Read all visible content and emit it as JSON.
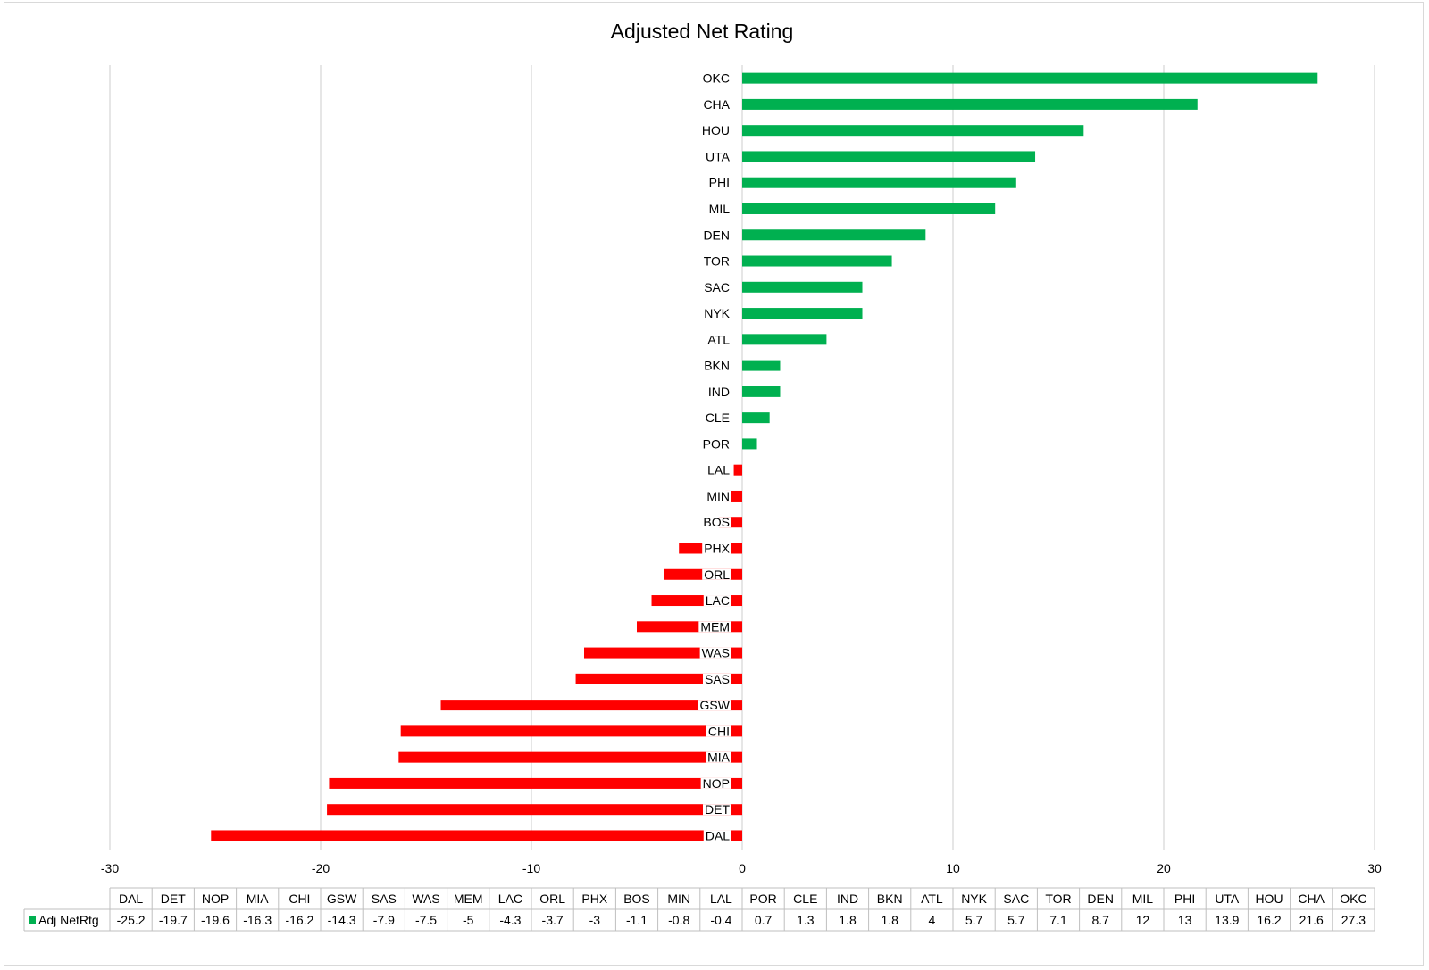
{
  "chart_data": {
    "type": "bar",
    "orientation": "horizontal",
    "title": "Adjusted Net Rating",
    "categories": [
      "DAL",
      "DET",
      "NOP",
      "MIA",
      "CHI",
      "GSW",
      "SAS",
      "WAS",
      "MEM",
      "LAC",
      "ORL",
      "PHX",
      "BOS",
      "MIN",
      "LAL",
      "POR",
      "CLE",
      "IND",
      "BKN",
      "ATL",
      "NYK",
      "SAC",
      "TOR",
      "DEN",
      "MIL",
      "PHI",
      "UTA",
      "HOU",
      "CHA",
      "OKC"
    ],
    "series": [
      {
        "name": "Adj NetRtg",
        "values": [
          -25.2,
          -19.7,
          -19.6,
          -16.3,
          -16.2,
          -14.3,
          -7.9,
          -7.5,
          -5,
          -4.3,
          -3.7,
          -3,
          -1.1,
          -0.8,
          -0.4,
          0.7,
          1.3,
          1.8,
          1.8,
          4,
          5.7,
          5.7,
          7.1,
          8.7,
          12,
          13,
          13.9,
          16.2,
          21.6,
          27.3
        ]
      }
    ],
    "xlim": [
      -30,
      30
    ],
    "xticks": [
      -30,
      -20,
      -10,
      0,
      10,
      20,
      30
    ],
    "grid": "vertical",
    "data_table": true,
    "colors": {
      "positive": "#00b050",
      "negative": "#ff0000"
    }
  }
}
